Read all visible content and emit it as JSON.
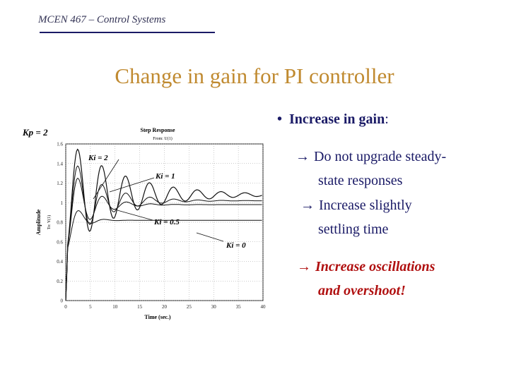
{
  "header": {
    "course": "MCEN 467 – Control Systems"
  },
  "slide": {
    "title": "Change in gain for PI controller"
  },
  "bullet": {
    "heading": "Increase in gain",
    "colon": ":",
    "arrow": "→",
    "points": [
      {
        "line1": "Do not upgrade steady-",
        "line2": "state responses"
      },
      {
        "line1": "Increase slightly",
        "line2": "settling time"
      },
      {
        "line1": "Increase oscillations",
        "line2": "and overshoot!"
      }
    ]
  },
  "chart_data": {
    "type": "line",
    "title": "Step Response",
    "subtitle": "From: U(1)",
    "xlabel": "Time (sec.)",
    "ylabel": "Amplitude",
    "ylabel2": "To: Y(1)",
    "kp_label": "Kp = 2",
    "xlim": [
      0,
      40
    ],
    "ylim": [
      0,
      1.6
    ],
    "xticks": [
      "0",
      "5",
      "10",
      "15",
      "20",
      "25",
      "30",
      "35",
      "40"
    ],
    "yticks": [
      "0",
      "0.2",
      "0.4",
      "0.6",
      "0.8",
      "1",
      "1.2",
      "1.4",
      "1.6"
    ],
    "grid": true,
    "series": [
      {
        "name": "Ki = 2",
        "final": 1.08,
        "zeta": 0.07,
        "omega": 1.3,
        "start": 0.5
      },
      {
        "name": "Ki = 1",
        "final": 1.02,
        "zeta": 0.12,
        "omega": 1.3,
        "start": 0.5
      },
      {
        "name": "Ki = 0.5",
        "final": 0.98,
        "zeta": 0.18,
        "omega": 1.3,
        "start": 0.5
      },
      {
        "name": "Ki = 0",
        "final": 0.82,
        "zeta": 0.35,
        "omega": 1.3,
        "start": 0.5
      }
    ]
  }
}
